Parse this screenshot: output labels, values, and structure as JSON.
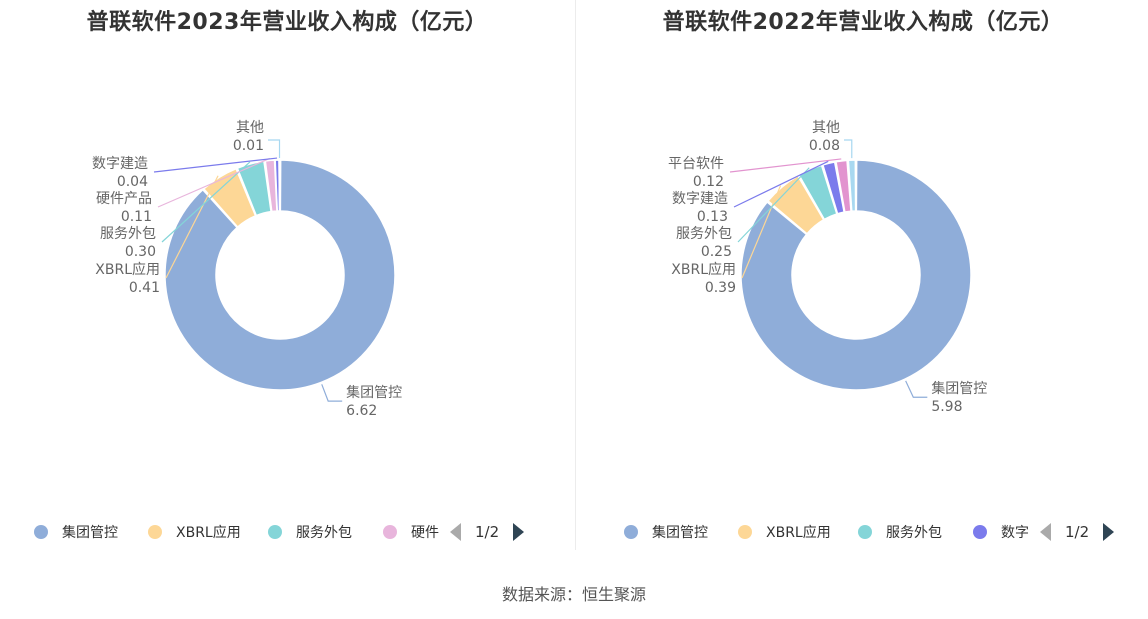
{
  "chart_data": [
    {
      "type": "pie",
      "title": "普联软件2023年营业收入构成（亿元）",
      "slices": [
        {
          "name": "集团管控",
          "value": 6.62,
          "value_label": "6.62",
          "color": "#8fadd9"
        },
        {
          "name": "XBRL应用",
          "value": 0.41,
          "value_label": "0.41",
          "color": "#fdd796"
        },
        {
          "name": "服务外包",
          "value": 0.3,
          "value_label": "0.30",
          "color": "#84d5d8"
        },
        {
          "name": "硬件产品",
          "value": 0.11,
          "value_label": "0.11",
          "color": "#e8b5dc"
        },
        {
          "name": "数字建造",
          "value": 0.04,
          "value_label": "0.04",
          "color": "#7b7bec"
        },
        {
          "name": "其他",
          "value": 0.01,
          "value_label": "0.01",
          "color": "#a8d8f0"
        }
      ],
      "legend": {
        "position": "bottom",
        "visible_items": [
          "集团管控",
          "XBRL应用",
          "服务外包",
          "硬件"
        ],
        "page": "1/2"
      }
    },
    {
      "type": "pie",
      "title": "普联软件2022年营业收入构成（亿元）",
      "slices": [
        {
          "name": "集团管控",
          "value": 5.98,
          "value_label": "5.98",
          "color": "#8fadd9"
        },
        {
          "name": "XBRL应用",
          "value": 0.39,
          "value_label": "0.39",
          "color": "#fdd796"
        },
        {
          "name": "服务外包",
          "value": 0.25,
          "value_label": "0.25",
          "color": "#84d5d8"
        },
        {
          "name": "数字建造",
          "value": 0.13,
          "value_label": "0.13",
          "color": "#7b7bec"
        },
        {
          "name": "平台软件",
          "value": 0.12,
          "value_label": "0.12",
          "color": "#e294cf"
        },
        {
          "name": "其他",
          "value": 0.08,
          "value_label": "0.08",
          "color": "#a8d8f0"
        }
      ],
      "legend": {
        "position": "bottom",
        "visible_items": [
          "集团管控",
          "XBRL应用",
          "服务外包",
          "数字"
        ],
        "page": "1/2"
      }
    }
  ],
  "source": "数据来源：恒生聚源"
}
